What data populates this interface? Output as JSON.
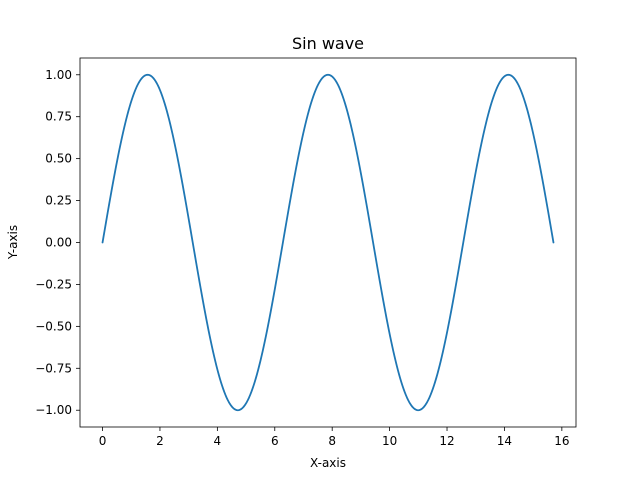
{
  "chart_data": {
    "type": "line",
    "title": "Sin wave",
    "xlabel": "X-axis",
    "ylabel": "Y-axis",
    "xlim": [
      -0.785,
      16.493
    ],
    "ylim": [
      -1.1,
      1.1
    ],
    "x_ticks": [
      0,
      2,
      4,
      6,
      8,
      10,
      12,
      14,
      16
    ],
    "x_tick_labels": [
      "0",
      "2",
      "4",
      "6",
      "8",
      "10",
      "12",
      "14",
      "16"
    ],
    "y_ticks": [
      1.0,
      0.75,
      0.5,
      0.25,
      0.0,
      -0.25,
      -0.5,
      -0.75,
      -1.0
    ],
    "y_tick_labels": [
      "1.00",
      "0.75",
      "0.50",
      "0.25",
      "0.00",
      "−0.25",
      "−0.50",
      "−0.75",
      "−1.00"
    ],
    "grid": false,
    "series": [
      {
        "color": "#1f77b4",
        "x": [
          0,
          0.5,
          1.0,
          1.5708,
          2.0,
          2.5,
          3.0,
          3.1416,
          3.5,
          4.0,
          4.5,
          4.7124,
          5.0,
          5.5,
          6.0,
          6.2832,
          6.5,
          7.0,
          7.5,
          7.854,
          8.0,
          8.5,
          9.0,
          9.4248,
          9.5,
          10.0,
          10.5,
          10.9956,
          11.5,
          12.0,
          12.5664,
          13.0,
          13.5,
          14.1372,
          14.5,
          15.0,
          15.5,
          15.708
        ],
        "y": [
          0,
          0.479,
          0.841,
          1.0,
          0.909,
          0.598,
          0.141,
          0.0,
          -0.351,
          -0.757,
          -0.978,
          -1.0,
          -0.959,
          -0.706,
          -0.279,
          0.0,
          0.215,
          0.657,
          0.938,
          1.0,
          0.989,
          0.798,
          0.412,
          0.0,
          -0.075,
          -0.544,
          -0.88,
          -1.0,
          -0.875,
          -0.537,
          0.0,
          0.42,
          0.804,
          1.0,
          0.935,
          0.65,
          0.182,
          0.0
        ]
      }
    ]
  }
}
